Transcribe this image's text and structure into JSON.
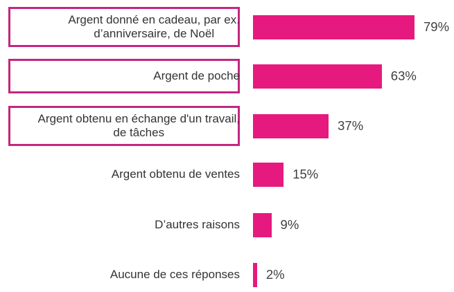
{
  "chart_data": {
    "type": "bar",
    "orientation": "horizontal",
    "categories": [
      "Argent donné en cadeau, par ex. d’anniversaire, de Noël",
      "Argent de poche",
      "Argent obtenu en échange d'un travail, de tâches",
      "Argent obtenu de ventes",
      "D’autres raisons",
      "Aucune de ces réponses"
    ],
    "category_lines": [
      [
        "Argent donné en cadeau, par ex.",
        "d’anniversaire, de Noël"
      ],
      [
        "Argent de poche"
      ],
      [
        "Argent obtenu en échange d'un travail,",
        "de tâches"
      ],
      [
        "Argent obtenu de ventes"
      ],
      [
        "D’autres raisons"
      ],
      [
        "Aucune de ces réponses"
      ]
    ],
    "values": [
      79,
      63,
      37,
      15,
      9,
      2
    ],
    "value_labels": [
      "79%",
      "63%",
      "37%",
      "15%",
      "9%",
      "2%"
    ],
    "highlighted": [
      true,
      true,
      true,
      false,
      false,
      false
    ],
    "xlim": [
      0,
      100
    ],
    "grid": false,
    "bar_color": "#e6197f",
    "highlight_border_color": "#c3267f"
  }
}
